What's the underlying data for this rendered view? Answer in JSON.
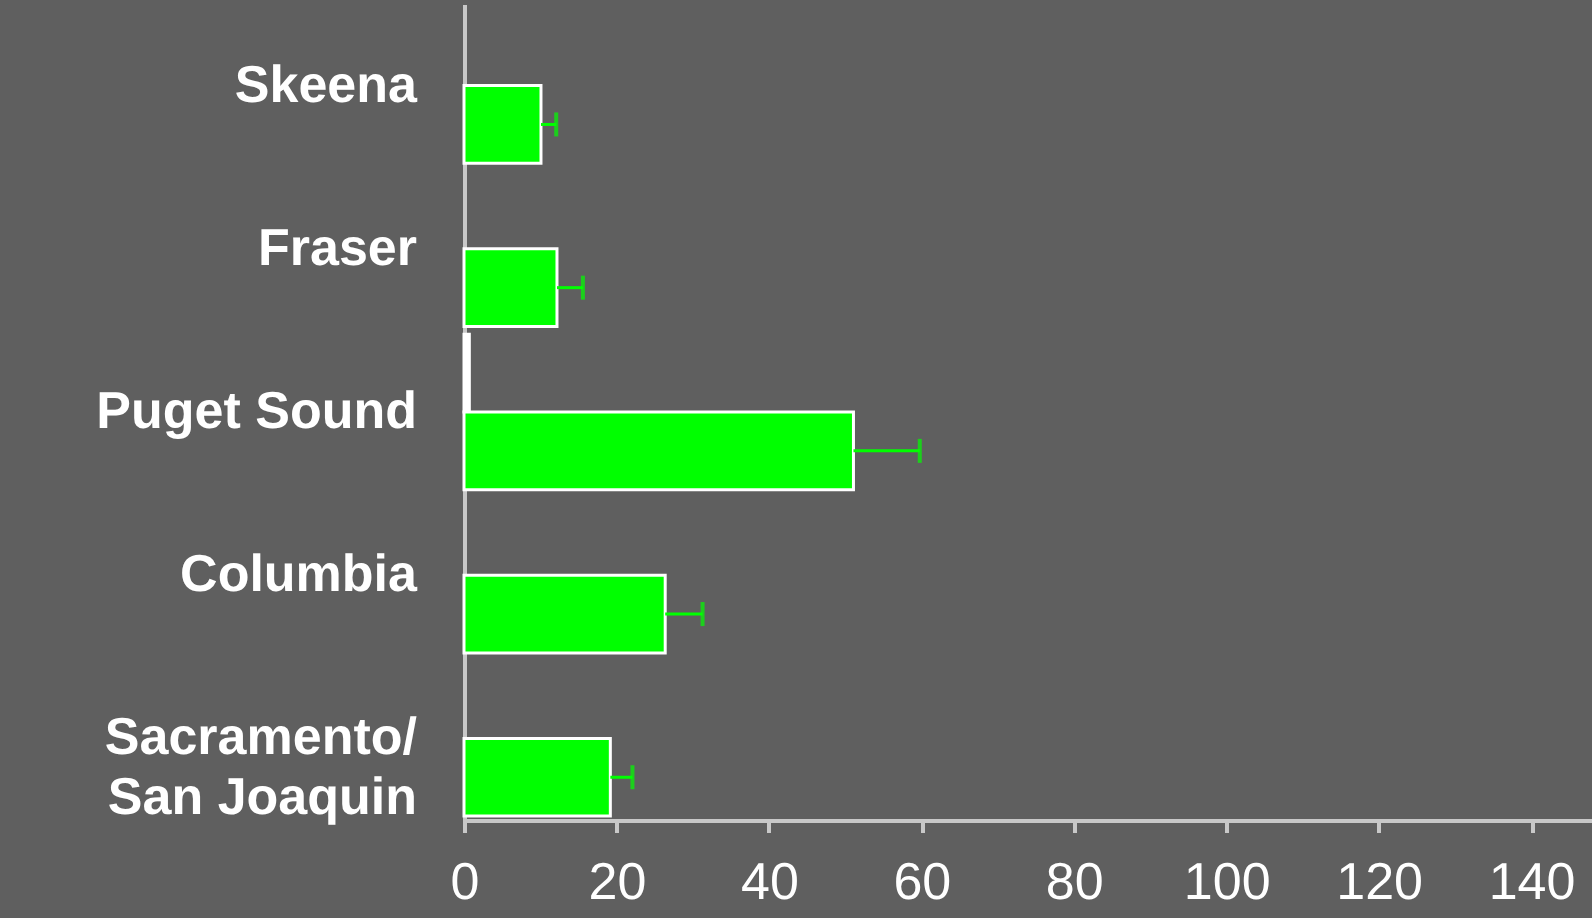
{
  "chart_data": {
    "type": "bar",
    "orientation": "horizontal",
    "categories": [
      "Skeena",
      "Fraser",
      "Puget Sound",
      "Columbia",
      "Sacramento/\nSan Joaquin"
    ],
    "series": [
      {
        "color": "#ffffff",
        "values": [
          null,
          null,
          0.7,
          null,
          null
        ]
      },
      {
        "color": "#00ff00",
        "values": [
          10.1,
          12.2,
          51.1,
          26.4,
          19.2
        ],
        "errors": [
          [
            10.1,
            12.1
          ],
          [
            12.2,
            15.6
          ],
          [
            51.1,
            59.8
          ],
          [
            26.4,
            31.3
          ],
          [
            19.2,
            22.1
          ]
        ]
      }
    ],
    "xlim": [
      0,
      148
    ],
    "xticks": [
      0,
      20,
      40,
      60,
      80,
      100,
      120,
      140
    ],
    "grid": false
  }
}
